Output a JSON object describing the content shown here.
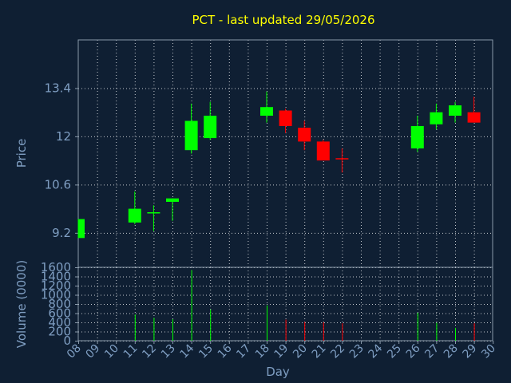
{
  "chart_data": [
    {
      "type": "candlestick",
      "title": "PCT - last updated 29/05/2026",
      "ylabel": "Price",
      "yticks": [
        "9.2",
        "10.6",
        "12",
        "13.4"
      ],
      "ylim": [
        8.2,
        14.8
      ],
      "grid": true,
      "up_color": "#00ff00",
      "down_color": "#ff0000",
      "candles": [
        {
          "day": 8,
          "open": 9.05,
          "high": 9.6,
          "low": 9.05,
          "close": 9.6
        },
        {
          "day": 11,
          "open": 9.5,
          "high": 10.4,
          "low": 9.45,
          "close": 9.9
        },
        {
          "day": 12,
          "open": 9.75,
          "high": 10.0,
          "low": 9.25,
          "close": 9.78
        },
        {
          "day": 13,
          "open": 10.1,
          "high": 10.2,
          "low": 9.55,
          "close": 10.2
        },
        {
          "day": 14,
          "open": 11.6,
          "high": 12.95,
          "low": 11.5,
          "close": 12.45
        },
        {
          "day": 15,
          "open": 11.95,
          "high": 13.0,
          "low": 11.9,
          "close": 12.6
        },
        {
          "day": 18,
          "open": 12.6,
          "high": 13.3,
          "low": 12.4,
          "close": 12.85
        },
        {
          "day": 19,
          "open": 12.75,
          "high": 12.8,
          "low": 12.1,
          "close": 12.3
        },
        {
          "day": 20,
          "open": 12.25,
          "high": 12.45,
          "low": 11.6,
          "close": 11.85
        },
        {
          "day": 21,
          "open": 11.85,
          "high": 11.9,
          "low": 11.3,
          "close": 11.3
        },
        {
          "day": 22,
          "open": 11.35,
          "high": 11.65,
          "low": 10.95,
          "close": 11.33
        },
        {
          "day": 26,
          "open": 11.65,
          "high": 12.6,
          "low": 11.55,
          "close": 12.3
        },
        {
          "day": 27,
          "open": 12.35,
          "high": 12.95,
          "low": 12.2,
          "close": 12.7
        },
        {
          "day": 28,
          "open": 12.6,
          "high": 13.0,
          "low": 12.4,
          "close": 12.9
        },
        {
          "day": 29,
          "open": 12.7,
          "high": 13.15,
          "low": 12.4,
          "close": 12.4
        }
      ]
    },
    {
      "type": "bar",
      "ylabel": "Volume (0000)",
      "xlabel": "Day",
      "ylim": [
        0,
        1600
      ],
      "yticks": [
        "0",
        "200",
        "400",
        "600",
        "800",
        "1000",
        "1200",
        "1400",
        "1600"
      ],
      "xticks": [
        "08",
        "09",
        "10",
        "11",
        "12",
        "13",
        "14",
        "15",
        "16",
        "17",
        "18",
        "19",
        "20",
        "21",
        "22",
        "23",
        "24",
        "25",
        "26",
        "27",
        "28",
        "29",
        "30"
      ],
      "grid": true,
      "bars": [
        {
          "day": 8,
          "value": 0,
          "direction": "up"
        },
        {
          "day": 11,
          "value": 570,
          "direction": "up"
        },
        {
          "day": 12,
          "value": 500,
          "direction": "up"
        },
        {
          "day": 13,
          "value": 470,
          "direction": "up"
        },
        {
          "day": 14,
          "value": 1540,
          "direction": "up"
        },
        {
          "day": 15,
          "value": 680,
          "direction": "up"
        },
        {
          "day": 18,
          "value": 770,
          "direction": "up"
        },
        {
          "day": 19,
          "value": 460,
          "direction": "down"
        },
        {
          "day": 20,
          "value": 410,
          "direction": "down"
        },
        {
          "day": 21,
          "value": 400,
          "direction": "down"
        },
        {
          "day": 22,
          "value": 380,
          "direction": "down"
        },
        {
          "day": 26,
          "value": 610,
          "direction": "up"
        },
        {
          "day": 27,
          "value": 390,
          "direction": "up"
        },
        {
          "day": 28,
          "value": 280,
          "direction": "up"
        },
        {
          "day": 29,
          "value": 380,
          "direction": "down"
        }
      ]
    }
  ]
}
